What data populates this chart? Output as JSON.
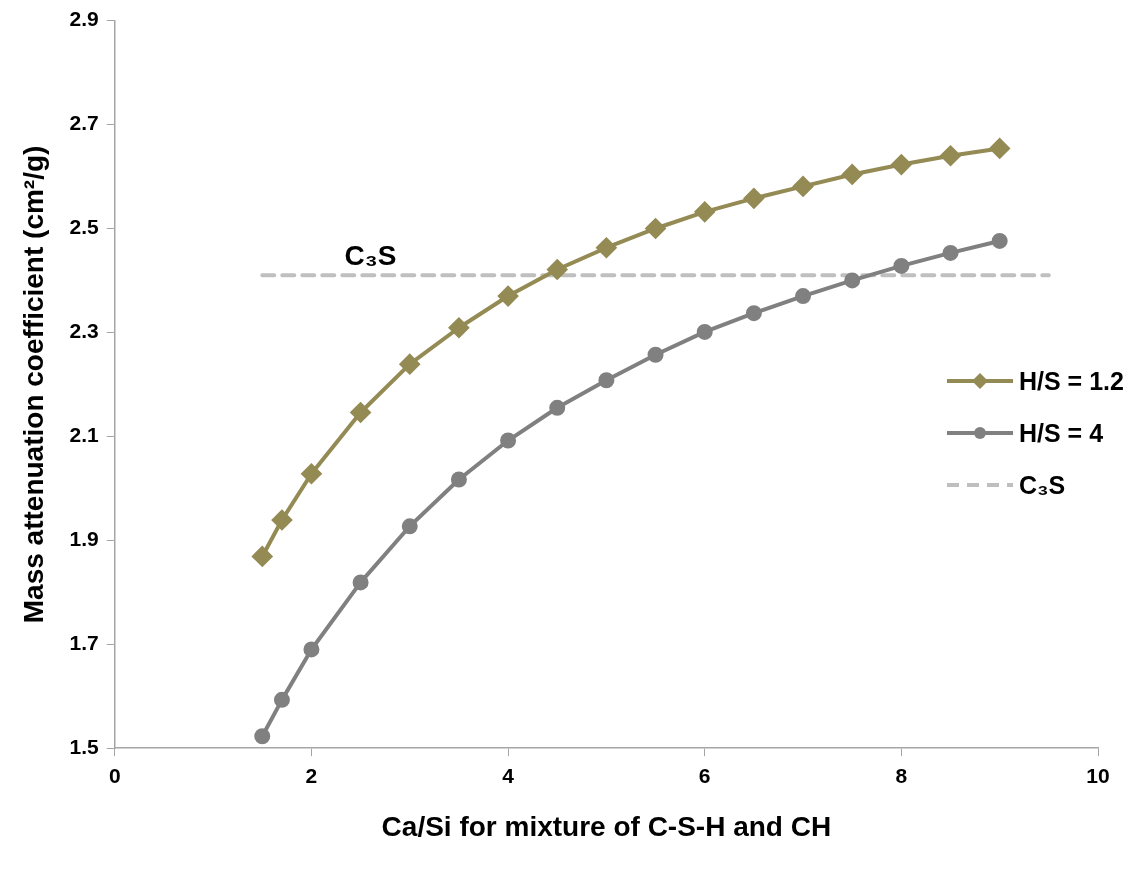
{
  "chart_data": {
    "type": "line",
    "xlabel": "Ca/Si for mixture of C-S-H and CH",
    "ylabel": "Mass attenuation coefficient (cm²/g)",
    "xlim": [
      0,
      10
    ],
    "xticks": [
      0,
      2,
      4,
      6,
      8,
      10
    ],
    "ylim": [
      1.5,
      2.9
    ],
    "yticks": [
      1.5,
      1.7,
      1.9,
      2.1,
      2.3,
      2.5,
      2.7,
      2.9
    ],
    "grid": false,
    "legend": "right",
    "line_style": "solid",
    "series": [
      {
        "name": "H/S = 1.2",
        "color": "#948a54",
        "marker": "diamond",
        "x": [
          1.5,
          1.7,
          2,
          2.5,
          3,
          3.5,
          4,
          4.5,
          5,
          5.5,
          6,
          6.5,
          7,
          7.5,
          8,
          8.5,
          9
        ],
        "values": [
          1.869,
          1.939,
          2.028,
          2.146,
          2.239,
          2.309,
          2.37,
          2.421,
          2.463,
          2.5,
          2.532,
          2.558,
          2.581,
          2.604,
          2.623,
          2.64,
          2.654
        ]
      },
      {
        "name": "H/S = 4",
        "color": "#808080",
        "marker": "circle",
        "x": [
          1.5,
          1.7,
          2,
          2.5,
          3,
          3.5,
          4,
          4.5,
          5,
          5.5,
          6,
          6.5,
          7,
          7.5,
          8,
          8.5,
          9
        ],
        "values": [
          1.523,
          1.593,
          1.69,
          1.819,
          1.927,
          2.017,
          2.092,
          2.155,
          2.208,
          2.257,
          2.301,
          2.337,
          2.37,
          2.4,
          2.428,
          2.453,
          2.476
        ]
      },
      {
        "name": "C₃S",
        "color": "#bfbfbf",
        "marker": "none",
        "line_style": "dashed",
        "x": [
          1.5,
          9.5
        ],
        "values": [
          2.41,
          2.41
        ]
      }
    ],
    "annotations": [
      "C₃S"
    ]
  }
}
